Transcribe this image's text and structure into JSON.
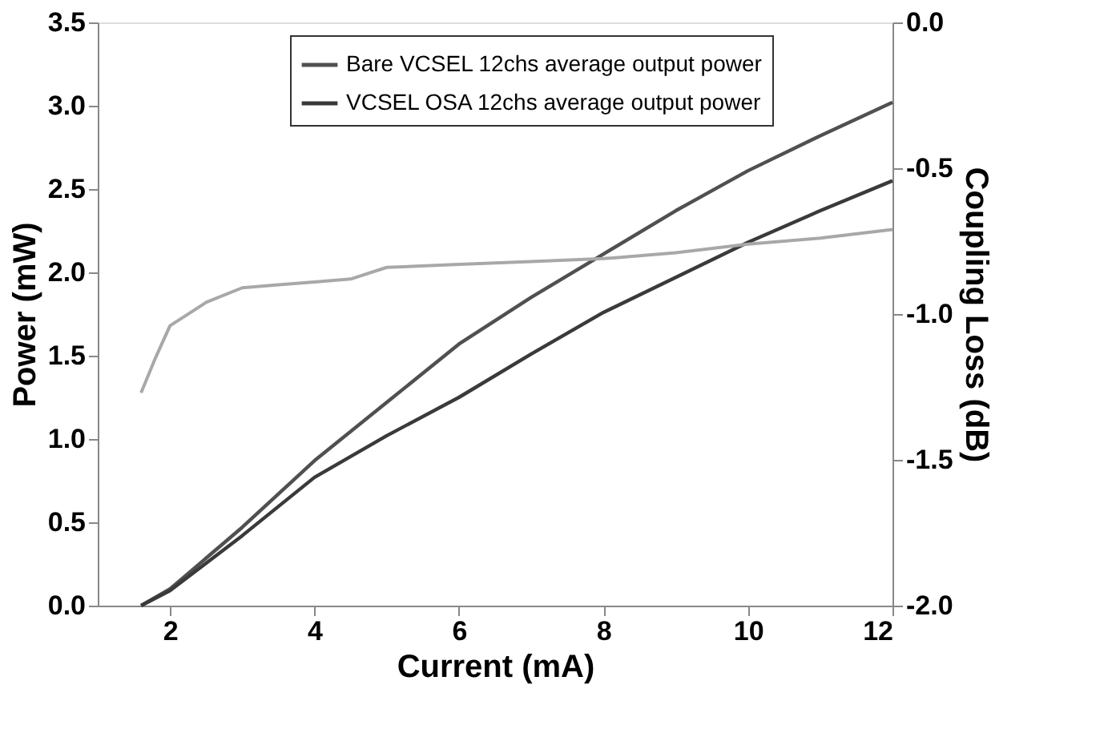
{
  "chart_data": {
    "type": "line",
    "xlabel": "Current (mA)",
    "ylabel": "Power (mW)",
    "y2label": "Coupling Loss (dB)",
    "xlim": [
      1,
      12
    ],
    "xticks": [
      2,
      4,
      6,
      8,
      10,
      12
    ],
    "ylim": [
      0,
      3.5
    ],
    "yticks": [
      {
        "value": 0,
        "label": "0.0"
      },
      0.5,
      {
        "value": 1,
        "label": "1.0"
      },
      1.5,
      {
        "value": 2,
        "label": "2.0"
      },
      2.5,
      {
        "value": 3,
        "label": "3.0"
      },
      3.5
    ],
    "y2lim": [
      -2.0,
      0.0
    ],
    "y2ticks": [
      {
        "value": -2,
        "label": "-2.0"
      },
      -1.5,
      {
        "value": -1,
        "label": "-1.0"
      },
      -0.5,
      {
        "value": 0,
        "label": "0.0"
      }
    ],
    "grid": false,
    "legend": "top",
    "line_style": "solid",
    "marker": "none",
    "series": [
      {
        "name": "Bare VCSEL 12chs average output power",
        "color": "#505050",
        "x": [
          1.6,
          2,
          3,
          4,
          5,
          6,
          7,
          8,
          9,
          10,
          11,
          12
        ],
        "values": [
          0,
          0.1,
          0.47,
          0.87,
          1.22,
          1.57,
          1.85,
          2.11,
          2.37,
          2.61,
          2.82,
          3.02
        ]
      },
      {
        "name": "VCSEL OSA 12chs average output power",
        "color": "#3a3a3a",
        "x": [
          1.6,
          2,
          3,
          4,
          5,
          6,
          7,
          8,
          9,
          10,
          11,
          12
        ],
        "values": [
          0,
          0.09,
          0.42,
          0.77,
          1.02,
          1.25,
          1.51,
          1.76,
          1.97,
          2.18,
          2.37,
          2.55
        ]
      },
      {
        "color": "#a8a8a8",
        "axis": "y2",
        "x": [
          1.6,
          1.8,
          2,
          2.5,
          3,
          3.5,
          4,
          4.5,
          5,
          6,
          7,
          8,
          9,
          10,
          11,
          12
        ],
        "values": [
          -1.27,
          -1.15,
          -1.04,
          -0.96,
          -0.91,
          -0.9,
          -0.89,
          -0.88,
          -0.84,
          -0.83,
          -0.82,
          -0.81,
          -0.79,
          -0.76,
          -0.74,
          -0.71
        ]
      }
    ]
  }
}
